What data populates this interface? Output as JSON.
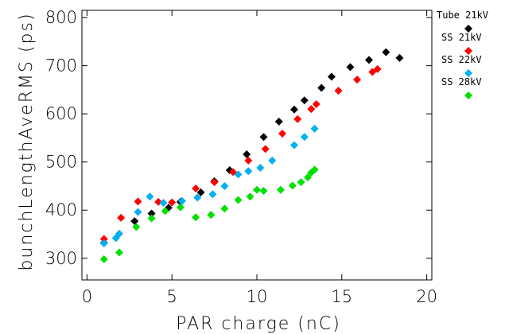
{
  "chart_data": {
    "type": "scatter",
    "xlabel": "PAR charge (nC)",
    "ylabel": "bunchLengthAveRMS (ps)",
    "xlim": [
      -0.3,
      20.3
    ],
    "ylim": [
      255,
      815
    ],
    "xticks": [
      0,
      5,
      10,
      15,
      20
    ],
    "yticks": [
      300,
      400,
      500,
      600,
      700,
      800
    ],
    "grid": false,
    "legend_position": "right",
    "series": [
      {
        "name": "Tube 21kV",
        "color": "#000000",
        "x": [
          1.0,
          2.8,
          3.8,
          4.8,
          5.5,
          6.7,
          7.5,
          8.4,
          9.4,
          10.4,
          11.3,
          12.2,
          12.8,
          13.8,
          14.4,
          15.5,
          16.6,
          17.6,
          18.4
        ],
        "y": [
          332,
          377,
          393,
          405,
          417,
          437,
          460,
          483,
          516,
          552,
          584,
          609,
          628,
          654,
          677,
          697,
          712,
          728,
          716
        ]
      },
      {
        "name": "SS 21kV",
        "color": "#ff0000",
        "x": [
          1.0,
          2.0,
          3.0,
          4.2,
          5.0,
          6.4,
          7.5,
          8.6,
          9.5,
          10.5,
          11.5,
          12.4,
          13.2,
          13.5,
          14.8,
          15.9,
          16.8,
          17.1
        ],
        "y": [
          340,
          384,
          418,
          417,
          416,
          445,
          458,
          479,
          503,
          527,
          559,
          589,
          610,
          620,
          648,
          671,
          687,
          693
        ]
      },
      {
        "name": "SS 22kV",
        "color": "#00b0f0",
        "x": [
          1.0,
          1.7,
          1.9,
          3.0,
          3.7,
          4.5,
          5.6,
          6.5,
          7.4,
          8.1,
          8.9,
          9.5,
          10.2,
          10.9,
          12.2,
          12.8,
          13.4
        ],
        "y": [
          331,
          342,
          351,
          396,
          428,
          415,
          419,
          426,
          433,
          450,
          474,
          481,
          488,
          503,
          535,
          552,
          569
        ]
      },
      {
        "name": "SS 28kV",
        "color": "#00e000",
        "x": [
          1.0,
          1.9,
          2.9,
          3.8,
          4.6,
          5.5,
          6.4,
          7.3,
          8.1,
          8.9,
          9.6,
          10.0,
          10.4,
          11.4,
          12.1,
          12.6,
          13.0,
          13.2,
          13.4
        ],
        "y": [
          298,
          312,
          365,
          383,
          398,
          406,
          385,
          390,
          403,
          421,
          428,
          442,
          440,
          442,
          451,
          458,
          468,
          478,
          484
        ]
      }
    ]
  }
}
